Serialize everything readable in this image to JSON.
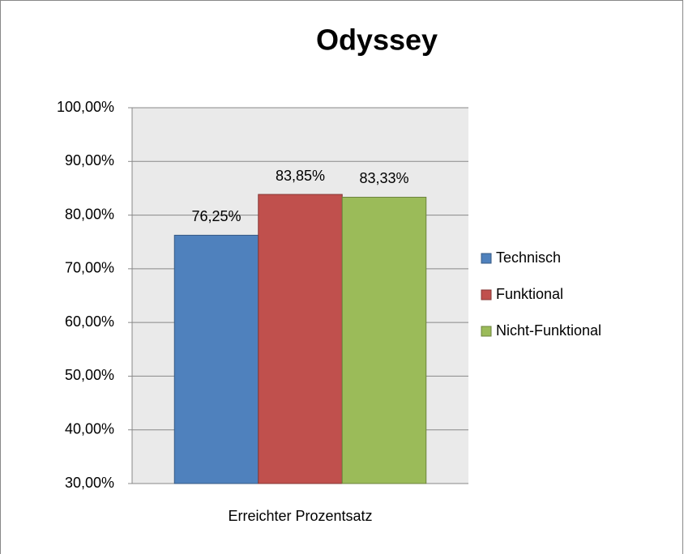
{
  "chart_data": {
    "type": "bar",
    "title": "Odyssey",
    "categories": [
      "Erreichter Prozentsatz"
    ],
    "series": [
      {
        "name": "Technisch",
        "color": "#4f81bd",
        "values": [
          76.25
        ],
        "value_labels": [
          "76,25%"
        ]
      },
      {
        "name": "Funktional",
        "color": "#c0504d",
        "values": [
          83.85
        ],
        "value_labels": [
          "83,85%"
        ]
      },
      {
        "name": "Nicht-Funktional",
        "color": "#9bbb59",
        "values": [
          83.33
        ],
        "value_labels": [
          "83,33%"
        ]
      }
    ],
    "ylim": [
      30,
      100
    ],
    "yticks": [
      {
        "value": 30,
        "label": "30,00%"
      },
      {
        "value": 40,
        "label": "40,00%"
      },
      {
        "value": 50,
        "label": "50,00%"
      },
      {
        "value": 60,
        "label": "60,00%"
      },
      {
        "value": 70,
        "label": "70,00%"
      },
      {
        "value": 80,
        "label": "80,00%"
      },
      {
        "value": 90,
        "label": "90,00%"
      },
      {
        "value": 100,
        "label": "100,00%"
      }
    ],
    "grid": true,
    "legend": "right"
  }
}
